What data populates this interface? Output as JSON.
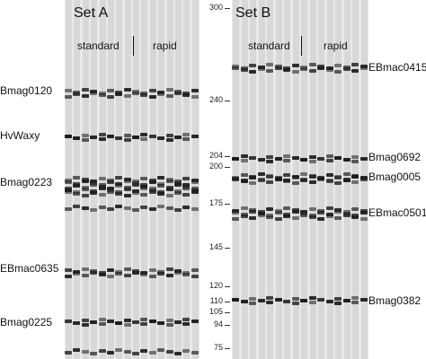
{
  "panel_a": {
    "title": "Set A",
    "conditions": [
      "standard",
      "rapid"
    ],
    "markers": [
      "Bmag0120",
      "HvWaxy",
      "Bmag0223",
      "EBmac0635",
      "Bmag0225"
    ]
  },
  "panel_b": {
    "title": "Set B",
    "conditions": [
      "standard",
      "rapid"
    ],
    "markers": [
      "EBmac0415",
      "Bmag0692",
      "Bmag0005",
      "EBmac0501",
      "Bmag0382"
    ]
  },
  "size_ladder": [
    "300",
    "240",
    "204",
    "200",
    "175",
    "145",
    "120",
    "110",
    "105",
    "94",
    "75"
  ],
  "lanes_per_set": 16,
  "colors": {
    "gel_background": "#e9e9e9",
    "lane": "#d8d8d8",
    "band": "#1a1a1a"
  }
}
